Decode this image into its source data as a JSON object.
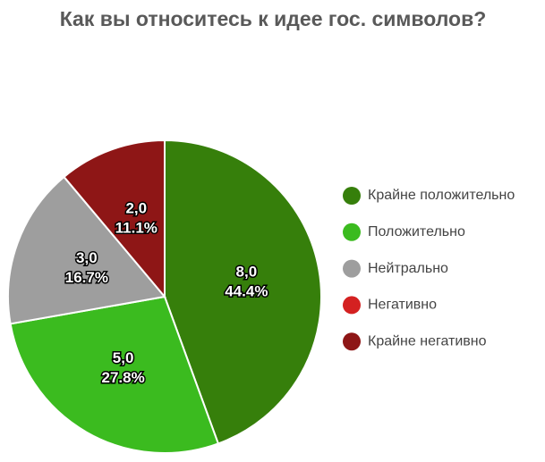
{
  "chart_data": {
    "type": "pie",
    "title": "Как вы относитесь к идее гос. символов?",
    "categories": [
      "Крайне положительно",
      "Положительно",
      "Нейтрально",
      "Негативно",
      "Крайне негативно"
    ],
    "values": [
      8,
      5,
      3,
      0,
      2
    ],
    "value_labels": [
      "8,0",
      "5,0",
      "3,0",
      null,
      "2,0"
    ],
    "percent_values": [
      44.4,
      27.8,
      16.7,
      null,
      11.1
    ],
    "percent_labels": [
      "44.4%",
      "27.8%",
      "16.7%",
      null,
      "11.1%"
    ],
    "colors": [
      "#367f0b",
      "#3bbb1f",
      "#9e9e9e",
      "#d42121",
      "#8e1616"
    ],
    "legend": "right"
  }
}
